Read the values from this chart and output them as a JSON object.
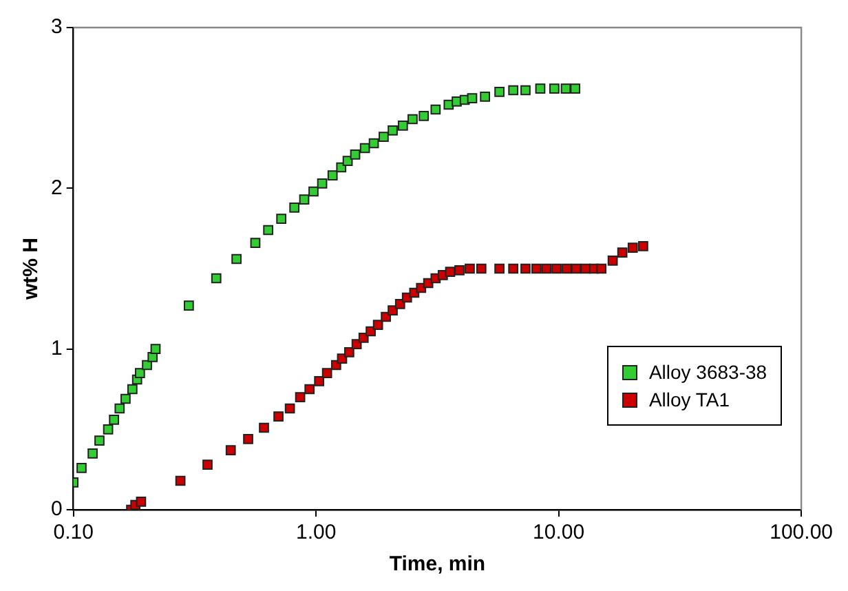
{
  "chart_data": {
    "type": "scatter",
    "xlabel": "Time, min",
    "ylabel": "wt% H",
    "log": "x",
    "marker": "square",
    "legend": "right",
    "xlim": [
      0.1,
      100
    ],
    "xticks": [
      {
        "value": 0.1,
        "label": "0.10"
      },
      {
        "value": 1,
        "label": "1.00"
      },
      {
        "value": 10,
        "label": "10.00"
      },
      {
        "value": 100,
        "label": "100.00"
      }
    ],
    "ylim": [
      0,
      3
    ],
    "yticks": [
      0,
      1,
      2,
      3
    ],
    "series": [
      {
        "name": "Alloy 3683-38",
        "color": "#33cc33",
        "x": [
          0.1,
          0.108,
          0.12,
          0.128,
          0.139,
          0.147,
          0.155,
          0.164,
          0.175,
          0.183,
          0.188,
          0.201,
          0.212,
          0.218,
          0.299,
          0.388,
          0.47,
          0.562,
          0.635,
          0.719,
          0.814,
          0.894,
          0.976,
          1.06,
          1.17,
          1.27,
          1.35,
          1.45,
          1.59,
          1.73,
          1.9,
          2.07,
          2.28,
          2.5,
          2.78,
          3.11,
          3.52,
          3.8,
          4.1,
          4.4,
          4.97,
          5.7,
          6.5,
          7.3,
          8.4,
          9.6,
          10.7,
          11.7
        ],
        "values": [
          0.17,
          0.26,
          0.35,
          0.43,
          0.5,
          0.56,
          0.63,
          0.69,
          0.75,
          0.81,
          0.85,
          0.9,
          0.95,
          1.0,
          1.27,
          1.44,
          1.56,
          1.66,
          1.74,
          1.81,
          1.88,
          1.93,
          1.98,
          2.03,
          2.08,
          2.13,
          2.17,
          2.21,
          2.25,
          2.28,
          2.32,
          2.36,
          2.39,
          2.43,
          2.45,
          2.49,
          2.52,
          2.54,
          2.55,
          2.56,
          2.57,
          2.6,
          2.61,
          2.61,
          2.62,
          2.62,
          2.62,
          2.62
        ]
      },
      {
        "name": "Alloy TA1",
        "color": "#cc0000",
        "x": [
          0.173,
          0.18,
          0.19,
          0.276,
          0.357,
          0.445,
          0.525,
          0.61,
          0.7,
          0.78,
          0.86,
          0.94,
          1.03,
          1.11,
          1.21,
          1.28,
          1.37,
          1.47,
          1.57,
          1.68,
          1.8,
          1.94,
          2.07,
          2.22,
          2.37,
          2.54,
          2.71,
          2.9,
          3.11,
          3.33,
          3.57,
          3.9,
          4.3,
          4.8,
          5.7,
          6.5,
          7.3,
          8.1,
          8.9,
          9.8,
          10.8,
          11.8,
          12.9,
          14.0,
          15.0,
          16.7,
          18.3,
          20.2,
          22.3
        ],
        "values": [
          0.0,
          0.03,
          0.05,
          0.18,
          0.28,
          0.37,
          0.44,
          0.51,
          0.58,
          0.63,
          0.7,
          0.75,
          0.8,
          0.85,
          0.9,
          0.94,
          0.98,
          1.03,
          1.07,
          1.11,
          1.15,
          1.2,
          1.24,
          1.28,
          1.32,
          1.35,
          1.38,
          1.41,
          1.44,
          1.46,
          1.48,
          1.49,
          1.5,
          1.5,
          1.5,
          1.5,
          1.5,
          1.5,
          1.5,
          1.5,
          1.5,
          1.5,
          1.5,
          1.5,
          1.5,
          1.55,
          1.6,
          1.63,
          1.64
        ]
      }
    ]
  }
}
